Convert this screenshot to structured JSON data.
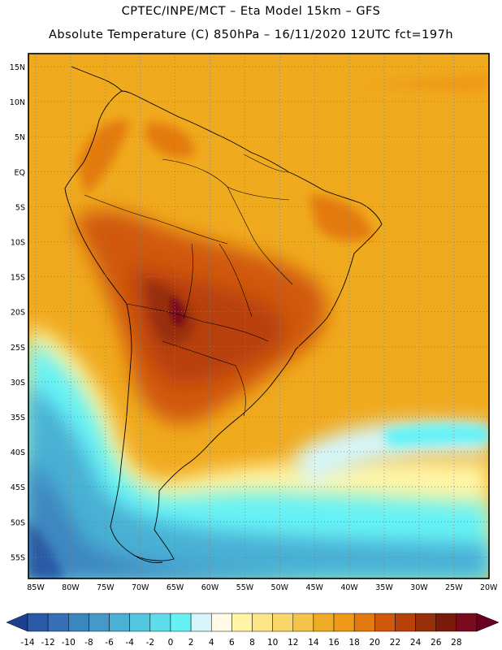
{
  "header": {
    "line1": "CPTEC/INPE/MCT –  Eta Model 15km – GFS",
    "line2": "Absolute Temperature (C) 850hPa – 16/11/2020 12UTC fct=197h"
  },
  "map": {
    "lat_labels": [
      "15N",
      "10N",
      "5N",
      "EQ",
      "5S",
      "10S",
      "15S",
      "20S",
      "25S",
      "30S",
      "35S",
      "40S",
      "45S",
      "50S",
      "55S"
    ],
    "lon_labels": [
      "85W",
      "80W",
      "75W",
      "70W",
      "65W",
      "60W",
      "55W",
      "50W",
      "45W",
      "40W",
      "35W",
      "30W",
      "25W",
      "20W"
    ]
  },
  "colorbar": {
    "labels": [
      "-14",
      "-12",
      "-10",
      "-8",
      "-6",
      "-4",
      "-2",
      "0",
      "2",
      "4",
      "6",
      "8",
      "10",
      "12",
      "14",
      "16",
      "18",
      "20",
      "22",
      "24",
      "26",
      "28"
    ],
    "colors": [
      "#1f3f8f",
      "#2a5aa5",
      "#3570b5",
      "#3c86c0",
      "#4499c8",
      "#4ab0d4",
      "#55c6df",
      "#5edcea",
      "#66f2f5",
      "#d6f6fb",
      "#fffbe6",
      "#fff5a5",
      "#fde68a",
      "#f9d76a",
      "#f3c34a",
      "#eeac25",
      "#ee9a18",
      "#e37a10",
      "#d0580c",
      "#b84109",
      "#962e0a",
      "#7a1a0a",
      "#7a0a1e",
      "#6a0020"
    ]
  }
}
